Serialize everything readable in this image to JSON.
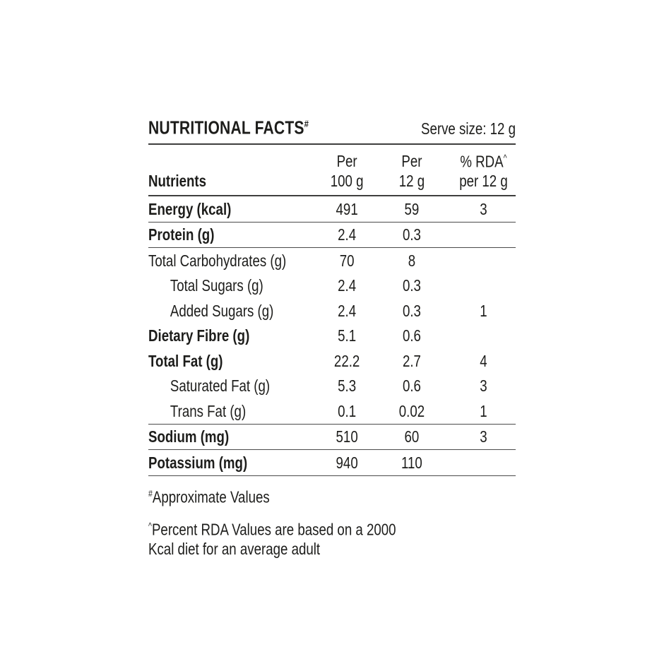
{
  "colors": {
    "text": "#1d1d1b",
    "rule_heavy": "#3f3f3e",
    "rule_light": "#4b4b4b"
  },
  "header": {
    "title": "NUTRITIONAL FACTS",
    "title_sup": "#",
    "serve_size": "Serve size: 12 g"
  },
  "table": {
    "column_headers": {
      "nutrients": "Nutrients",
      "per_100_line1": "Per",
      "per_100_line2": "100 g",
      "per_12_line1": "Per",
      "per_12_line2": "12 g",
      "rda_line1": "% RDA",
      "rda_sup": "^",
      "rda_line2": "per 12 g"
    },
    "rows": [
      {
        "label": "Energy (kcal)",
        "per_100_g": "491",
        "per_12_g": "59",
        "rda_percent": "3",
        "bold": true,
        "indent": false,
        "rule_below": true
      },
      {
        "label": "Protein (g)",
        "per_100_g": "2.4",
        "per_12_g": "0.3",
        "rda_percent": "",
        "bold": true,
        "indent": false,
        "rule_below": true
      },
      {
        "label": "Total Carbohydrates (g)",
        "per_100_g": "70",
        "per_12_g": "8",
        "rda_percent": "",
        "bold": false,
        "indent": false,
        "rule_below": false
      },
      {
        "label": "Total Sugars (g)",
        "per_100_g": "2.4",
        "per_12_g": "0.3",
        "rda_percent": "",
        "bold": false,
        "indent": true,
        "rule_below": false
      },
      {
        "label": "Added Sugars (g)",
        "per_100_g": "2.4",
        "per_12_g": "0.3",
        "rda_percent": "1",
        "bold": false,
        "indent": true,
        "rule_below": false
      },
      {
        "label": "Dietary Fibre (g)",
        "per_100_g": "5.1",
        "per_12_g": "0.6",
        "rda_percent": "",
        "bold": true,
        "indent": false,
        "rule_below": false
      },
      {
        "label": "Total Fat (g)",
        "per_100_g": "22.2",
        "per_12_g": "2.7",
        "rda_percent": "4",
        "bold": true,
        "indent": false,
        "rule_below": false
      },
      {
        "label": "Saturated Fat (g)",
        "per_100_g": "5.3",
        "per_12_g": "0.6",
        "rda_percent": "3",
        "bold": false,
        "indent": true,
        "rule_below": false
      },
      {
        "label": "Trans Fat (g)",
        "per_100_g": "0.1",
        "per_12_g": "0.02",
        "rda_percent": "1",
        "bold": false,
        "indent": true,
        "rule_below": true
      },
      {
        "label": "Sodium (mg)",
        "per_100_g": "510",
        "per_12_g": "60",
        "rda_percent": "3",
        "bold": true,
        "indent": false,
        "rule_below": true
      },
      {
        "label": "Potassium (mg)",
        "per_100_g": "940",
        "per_12_g": "110",
        "rda_percent": "",
        "bold": true,
        "indent": false,
        "rule_below": true
      }
    ]
  },
  "footnotes": [
    {
      "sup": "#",
      "text": "Approximate Values"
    },
    {
      "sup": "^",
      "text": "Percent RDA Values are based on a 2000\nKcal diet for an average adult"
    }
  ]
}
